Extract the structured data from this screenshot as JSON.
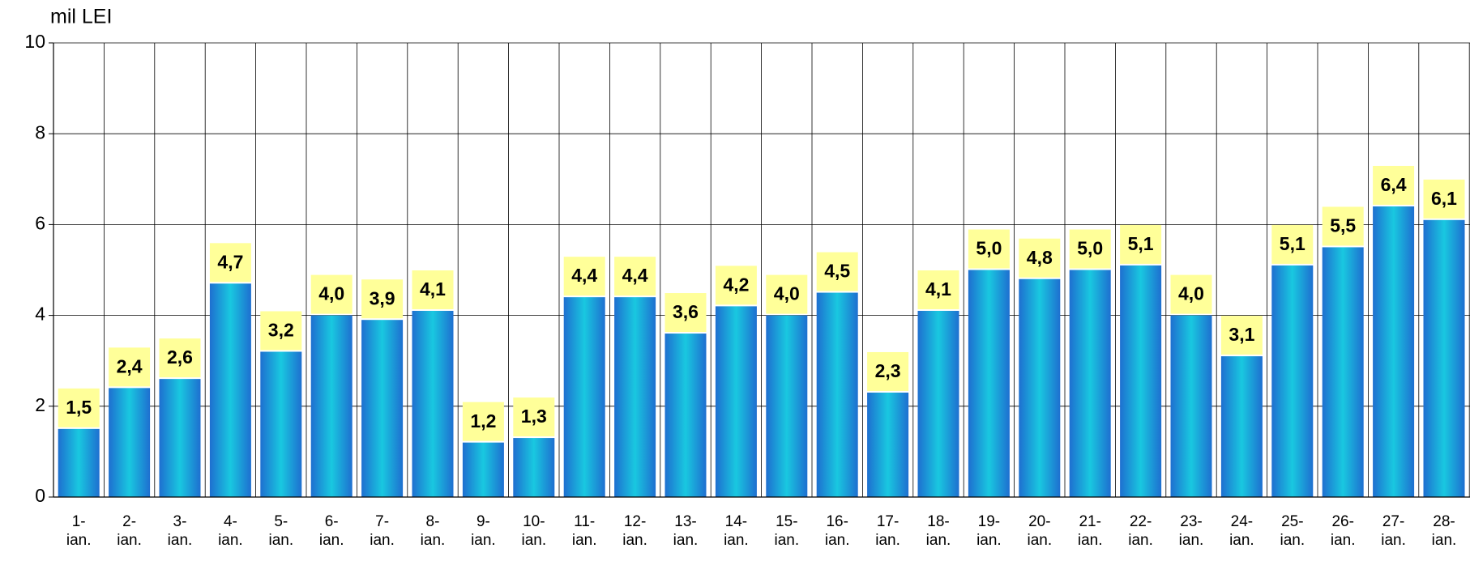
{
  "chart_data": {
    "type": "bar",
    "y_label": "mil LEI",
    "categories": [
      "1- ian.",
      "2- ian.",
      "3- ian.",
      "4- ian.",
      "5- ian.",
      "6- ian.",
      "7- ian.",
      "8- ian.",
      "9- ian.",
      "10- ian.",
      "11- ian.",
      "12- ian.",
      "13- ian.",
      "14- ian.",
      "15- ian.",
      "16- ian.",
      "17- ian.",
      "18- ian.",
      "19- ian.",
      "20- ian.",
      "21- ian.",
      "22- ian.",
      "23- ian.",
      "24- ian.",
      "25- ian.",
      "26- ian.",
      "27- ian.",
      "28- ian."
    ],
    "values": [
      1.5,
      2.4,
      2.6,
      4.7,
      3.2,
      4.0,
      3.9,
      4.1,
      1.2,
      1.3,
      4.4,
      4.4,
      3.6,
      4.2,
      4.0,
      4.5,
      2.3,
      4.1,
      5.0,
      4.8,
      5.0,
      5.1,
      4.0,
      3.1,
      5.1,
      5.5,
      6.4,
      6.1
    ],
    "value_labels": [
      "1,5",
      "2,4",
      "2,6",
      "4,7",
      "3,2",
      "4,0",
      "3,9",
      "4,1",
      "1,2",
      "1,3",
      "4,4",
      "4,4",
      "3,6",
      "4,2",
      "4,0",
      "4,5",
      "2,3",
      "4,1",
      "5,0",
      "4,8",
      "5,0",
      "5,1",
      "4,0",
      "3,1",
      "5,1",
      "5,5",
      "6,4",
      "6,1"
    ],
    "color": "#1a8fd8",
    "label_color": "#ffff99",
    "ylim": [
      0,
      10
    ],
    "yticks": [
      0,
      2,
      4,
      6,
      8,
      10
    ],
    "grid": true
  }
}
